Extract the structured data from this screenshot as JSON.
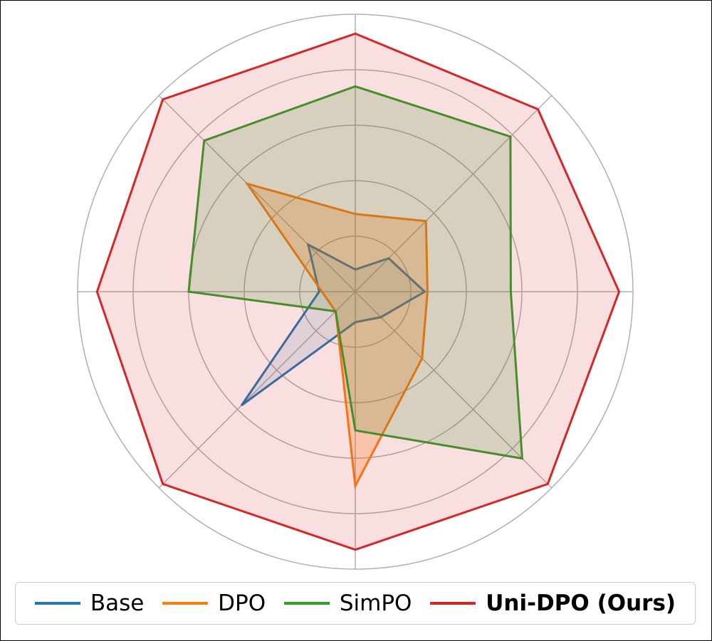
{
  "chart_data": {
    "type": "radar",
    "axes_count": 8,
    "r_max": 1.0,
    "rings": [
      0.2,
      0.4,
      0.6,
      0.8,
      1.0
    ],
    "grid": true,
    "axis_labels": [],
    "series": [
      {
        "name": "Base",
        "color": "#1f77b4",
        "fill_opacity": 0.12,
        "values": [
          0.08,
          0.17,
          0.25,
          0.13,
          0.11,
          0.58,
          0.13,
          0.24
        ]
      },
      {
        "name": "DPO",
        "color": "#ff7f0e",
        "fill_opacity": 0.25,
        "values": [
          0.28,
          0.36,
          0.26,
          0.34,
          0.7,
          0.1,
          0.12,
          0.55
        ]
      },
      {
        "name": "SimPO",
        "color": "#2ca02c",
        "fill_opacity": 0.18,
        "values": [
          0.74,
          0.79,
          0.56,
          0.85,
          0.5,
          0.1,
          0.6,
          0.77
        ]
      },
      {
        "name": "Uni-DPO (Ours)",
        "color": "#d62728",
        "fill_opacity": 0.15,
        "values": [
          0.93,
          0.93,
          0.95,
          0.98,
          0.93,
          0.98,
          0.93,
          0.98
        ]
      }
    ],
    "legend_position": "bottom"
  },
  "legend": {
    "items": [
      {
        "label": "Base",
        "color": "#1f77b4",
        "bold": false
      },
      {
        "label": "DPO",
        "color": "#ff7f0e",
        "bold": false
      },
      {
        "label": "SimPO",
        "color": "#2ca02c",
        "bold": false
      },
      {
        "label": "Uni-DPO (Ours)",
        "color": "#d62728",
        "bold": true
      }
    ]
  }
}
